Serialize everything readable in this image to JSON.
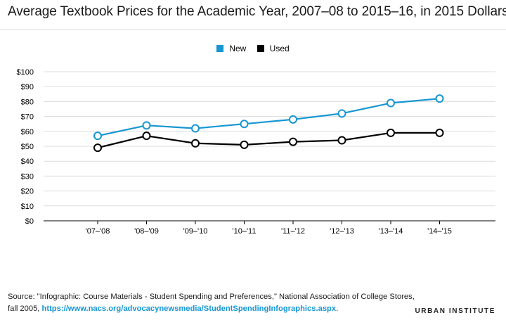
{
  "title": "Average Textbook Prices for the Academic Year, 2007–08 to 2015–16, in 2015 Dollars",
  "source": {
    "text": "Source: \"Infographic: Course Materials - Student Spending and Preferences,\" National Association of College Stores, fall 2005, ",
    "link": "https://www.nacs.org/advocacynewsmedia/StudentSpendingInfographics.aspx",
    "end": "."
  },
  "brand": "URBAN INSTITUTE",
  "colors": {
    "new": "#1696d2",
    "used": "#000000",
    "grid": "#dcdcdc"
  },
  "chart_data": {
    "type": "line",
    "title": "Average Textbook Prices for the Academic Year, 2007–08 to 2015–16, in 2015 Dollars",
    "categories": [
      "'07–'08",
      "'08–'09",
      "'09–'10",
      "'10–'11",
      "'11–'12",
      "'12–'13",
      "'13–'14",
      "'14–'15"
    ],
    "series": [
      {
        "name": "New",
        "color": "#1696d2",
        "values": [
          57,
          64,
          62,
          65,
          68,
          72,
          79,
          82
        ]
      },
      {
        "name": "Used",
        "color": "#000000",
        "values": [
          49,
          57,
          52,
          51,
          53,
          54,
          59,
          59
        ]
      }
    ],
    "yticks": [
      "$0",
      "$10",
      "$20",
      "$30",
      "$40",
      "$50",
      "$60",
      "$70",
      "$80",
      "$90",
      "$100"
    ],
    "ylim": [
      0,
      100
    ],
    "ystep": 10,
    "grid": true,
    "legend": "top-center",
    "xlabel": "",
    "ylabel": ""
  }
}
